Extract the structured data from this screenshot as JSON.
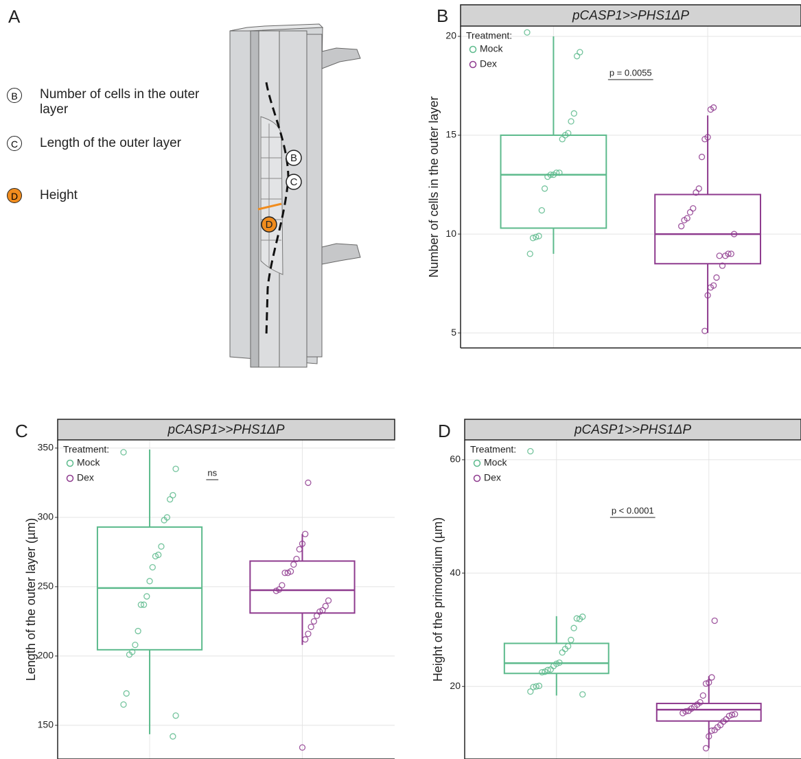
{
  "panel_a": {
    "label": "A",
    "legend": [
      {
        "marker": "B",
        "text": "Number of cells in the outer layer"
      },
      {
        "marker": "C",
        "text": "Length of the outer layer"
      },
      {
        "marker": "D",
        "text": "Height"
      }
    ],
    "diagram_markers": [
      "B",
      "C",
      "D"
    ]
  },
  "chart_data": [
    {
      "type": "box",
      "panel": "B",
      "title": "pCASP1>>PHS1ΔP",
      "ylabel": "Number of cells in the outer layer",
      "legend_title": "Treatment:",
      "annotation": "p = 0.0055",
      "ylim": [
        4.24,
        20.52
      ],
      "yticks": [
        5,
        10,
        15,
        20
      ],
      "grid": true,
      "series": [
        {
          "name": "Mock",
          "color": "#5cba8c",
          "whisker_low": 9.0,
          "q1": 10.3,
          "median": 13.0,
          "q3": 15.0,
          "whisker_high": 20.0,
          "points": [
            20.2,
            19.2,
            19.0,
            16.1,
            15.7,
            15.1,
            15.0,
            14.8,
            13.1,
            13.1,
            13.0,
            13.0,
            12.9,
            12.3,
            11.2,
            9.9,
            9.85,
            9.8,
            9.0
          ]
        },
        {
          "name": "Dex",
          "color": "#8e3a8e",
          "whisker_low": 5.0,
          "q1": 8.5,
          "median": 10.0,
          "q3": 12.0,
          "whisker_high": 16.0,
          "points": [
            16.4,
            16.3,
            14.9,
            14.8,
            13.9,
            12.3,
            12.1,
            11.3,
            11.1,
            10.8,
            10.7,
            10.4,
            10.0,
            9.0,
            9.0,
            8.9,
            8.4,
            8.9,
            7.8,
            7.4,
            7.3,
            6.9,
            5.1
          ]
        }
      ]
    },
    {
      "type": "box",
      "panel": "C",
      "title": "pCASP1>>PHS1ΔP",
      "ylabel": "Length of the outer layer (µm)",
      "legend_title": "Treatment:",
      "annotation": "ns",
      "ylim": [
        125.7,
        355.9
      ],
      "yticks": [
        150,
        200,
        250,
        300,
        350
      ],
      "grid": true,
      "series": [
        {
          "name": "Mock",
          "color": "#5cba8c",
          "whisker_low": 143.6,
          "q1": 204.5,
          "median": 249,
          "q3": 293,
          "whisker_high": 349,
          "points": [
            347,
            335,
            316,
            313,
            300,
            298,
            279,
            273,
            272,
            264,
            254,
            243,
            237,
            237,
            218,
            208,
            203,
            201,
            173,
            165,
            157,
            142
          ]
        },
        {
          "name": "Dex",
          "color": "#8e3a8e",
          "whisker_low": 208,
          "q1": 231,
          "median": 247.5,
          "q3": 268.5,
          "whisker_high": 288,
          "points": [
            325,
            288,
            281,
            277,
            270,
            266,
            261,
            260,
            260,
            251,
            248,
            247,
            240,
            236,
            233,
            232,
            229,
            225,
            221,
            216,
            212,
            134
          ]
        }
      ]
    },
    {
      "type": "box",
      "panel": "D",
      "title": "pCASP1>>PHS1ΔP",
      "ylabel": "Height of the primordium (µm)",
      "legend_title": "Treatment:",
      "annotation": "p < 0.0001",
      "ylim": [
        7.2,
        63.5
      ],
      "yticks": [
        20,
        40,
        60
      ],
      "grid": true,
      "series": [
        {
          "name": "Mock",
          "color": "#5cba8c",
          "whisker_low": 18.4,
          "q1": 22.3,
          "median": 24.1,
          "q3": 27.6,
          "whisker_high": 32.4,
          "points": [
            61.5,
            32.3,
            31.9,
            32.0,
            30.3,
            28.2,
            27.1,
            26.6,
            26.0,
            24.2,
            24.0,
            23.6,
            23.0,
            22.9,
            22.6,
            22.5,
            20.1,
            20.0,
            19.9,
            19.1,
            18.6
          ]
        },
        {
          "name": "Dex",
          "color": "#8e3a8e",
          "whisker_low": 9.1,
          "q1": 13.9,
          "median": 15.9,
          "q3": 17.0,
          "whisker_high": 21.8,
          "points": [
            31.6,
            21.6,
            20.7,
            20.5,
            18.4,
            17.2,
            16.8,
            16.4,
            16.1,
            15.7,
            15.6,
            15.3,
            15.1,
            15.0,
            14.8,
            14.2,
            13.8,
            13.2,
            12.8,
            12.3,
            12.2,
            11.2,
            9.1
          ]
        }
      ]
    }
  ]
}
